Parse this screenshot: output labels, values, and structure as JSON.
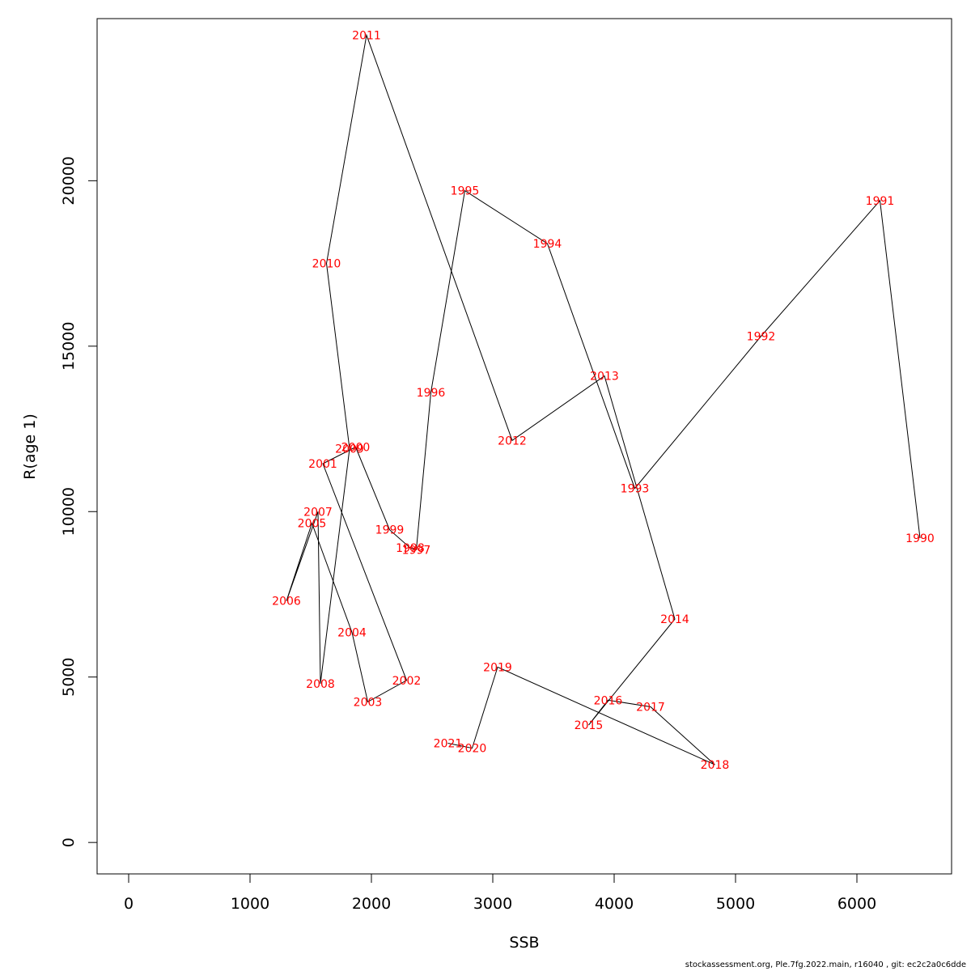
{
  "footer": "stockassessment.org, Ple.7fg.2022.main, r16040 , git: ec2c2a0c6dde",
  "colors": {
    "line": "#000000",
    "label": "#ff0000",
    "axis": "#000000"
  },
  "chart_data": {
    "type": "line",
    "xlabel": "SSB",
    "ylabel": "R(age 1)",
    "xlim": [
      -260,
      6780
    ],
    "ylim": [
      -950,
      24900
    ],
    "x_ticks": [
      0,
      1000,
      2000,
      3000,
      4000,
      5000,
      6000
    ],
    "y_ticks": [
      0,
      5000,
      10000,
      15000,
      20000
    ],
    "grid": false,
    "series": [
      {
        "points": [
          {
            "label": "1990",
            "x": 6520,
            "y": 9200
          },
          {
            "label": "1991",
            "x": 6190,
            "y": 19400
          },
          {
            "label": "1992",
            "x": 5210,
            "y": 15300
          },
          {
            "label": "1993",
            "x": 4170,
            "y": 10700
          },
          {
            "label": "1994",
            "x": 3450,
            "y": 18100
          },
          {
            "label": "1995",
            "x": 2770,
            "y": 19700
          },
          {
            "label": "1996",
            "x": 2490,
            "y": 13600
          },
          {
            "label": "1997",
            "x": 2370,
            "y": 8850
          },
          {
            "label": "1998",
            "x": 2320,
            "y": 8900
          },
          {
            "label": "1999",
            "x": 2150,
            "y": 9450
          },
          {
            "label": "2000",
            "x": 1870,
            "y": 11950
          },
          {
            "label": "2001",
            "x": 1600,
            "y": 11450
          },
          {
            "label": "2002",
            "x": 2290,
            "y": 4900
          },
          {
            "label": "2003",
            "x": 1970,
            "y": 4250
          },
          {
            "label": "2004",
            "x": 1840,
            "y": 6350
          },
          {
            "label": "2005",
            "x": 1510,
            "y": 9650
          },
          {
            "label": "2006",
            "x": 1300,
            "y": 7300
          },
          {
            "label": "2007",
            "x": 1560,
            "y": 10000
          },
          {
            "label": "2008",
            "x": 1580,
            "y": 4800
          },
          {
            "label": "2009",
            "x": 1820,
            "y": 11900
          },
          {
            "label": "2010",
            "x": 1630,
            "y": 17500
          },
          {
            "label": "2011",
            "x": 1960,
            "y": 24400
          },
          {
            "label": "2012",
            "x": 3160,
            "y": 12150
          },
          {
            "label": "2013",
            "x": 3920,
            "y": 14100
          },
          {
            "label": "2014",
            "x": 4500,
            "y": 6750
          },
          {
            "label": "2015",
            "x": 3790,
            "y": 3550
          },
          {
            "label": "2016",
            "x": 3950,
            "y": 4300
          },
          {
            "label": "2017",
            "x": 4300,
            "y": 4100
          },
          {
            "label": "2018",
            "x": 4830,
            "y": 2350
          },
          {
            "label": "2019",
            "x": 3040,
            "y": 5300
          },
          {
            "label": "2020",
            "x": 2830,
            "y": 2850
          },
          {
            "label": "2021",
            "x": 2630,
            "y": 3000
          }
        ]
      }
    ]
  }
}
